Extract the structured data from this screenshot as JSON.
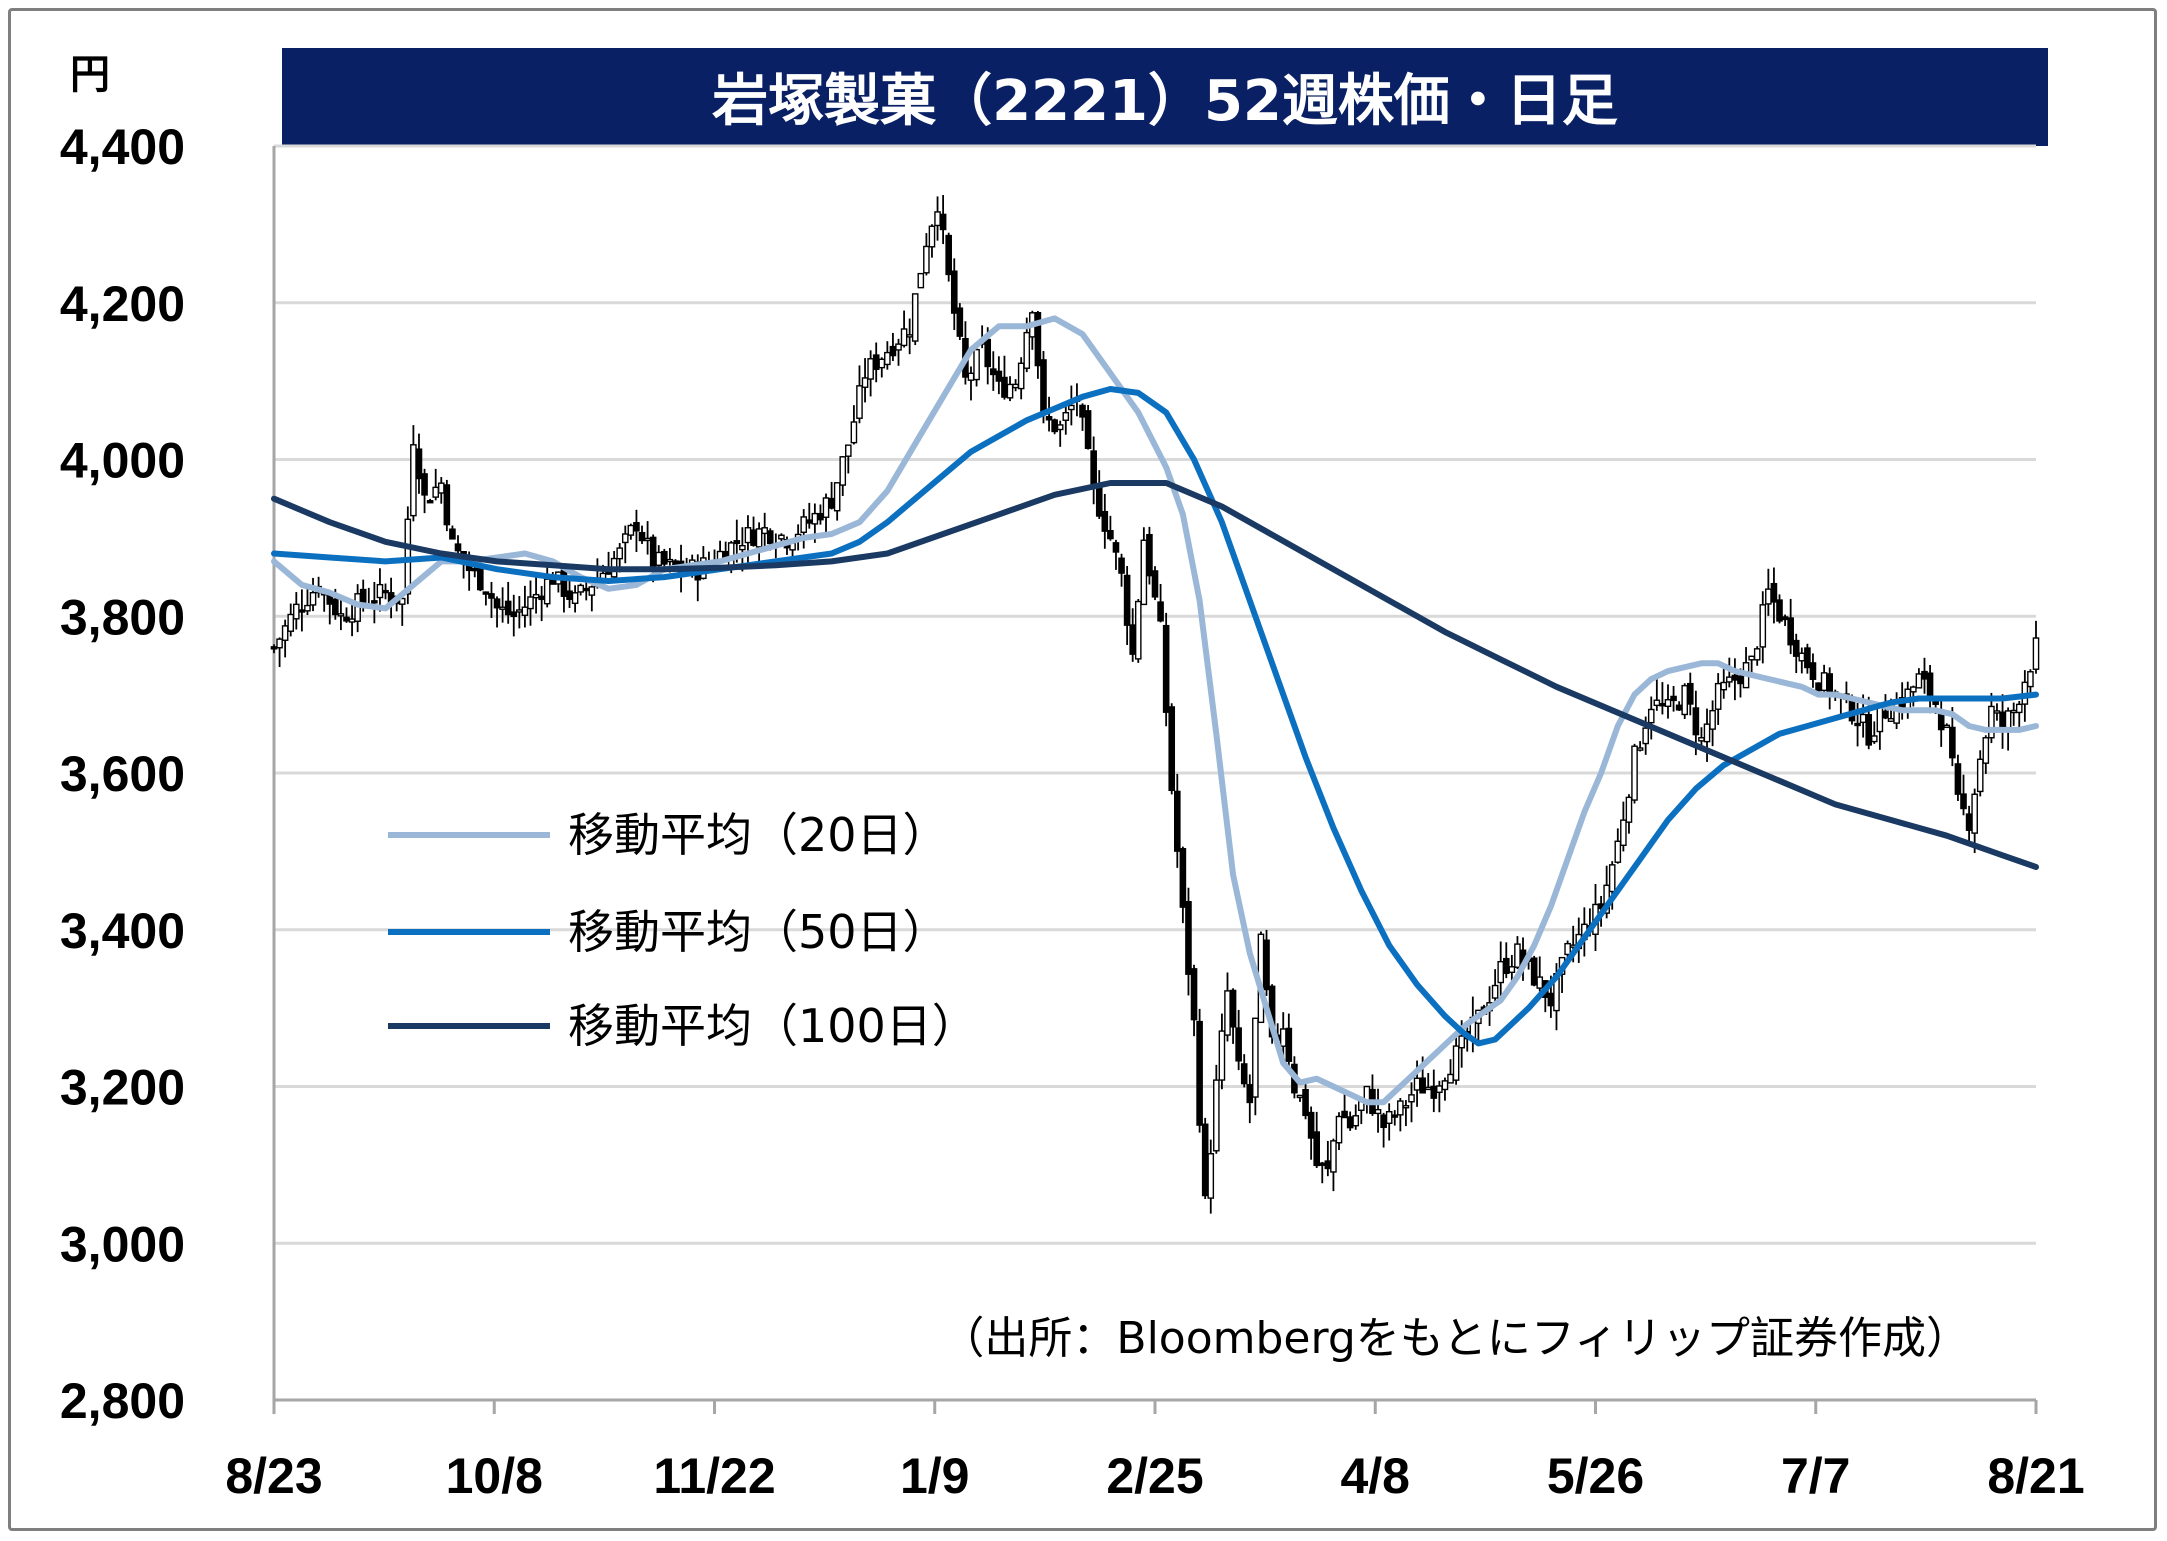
{
  "chart_data": {
    "type": "candlestick",
    "title": "岩塚製菓（2221）52週株価・日足",
    "yunit": "円",
    "ylim": [
      2800,
      4400
    ],
    "yticks": [
      2800,
      3000,
      3200,
      3400,
      3600,
      3800,
      4000,
      4200,
      4400
    ],
    "ytick_labels": [
      "2,800",
      "3,000",
      "3,200",
      "3,400",
      "3,600",
      "3,800",
      "4,000",
      "4,200",
      "4,400"
    ],
    "categories": [
      "8/23",
      "10/8",
      "11/22",
      "1/9",
      "2/25",
      "4/8",
      "5/26",
      "7/7",
      "8/21"
    ],
    "grid": true,
    "legend_position": "left-middle",
    "source": "（出所：Bloombergをもとにフィリップ証券作成）",
    "close_path": [
      [
        0,
        3760
      ],
      [
        4,
        3810
      ],
      [
        8,
        3840
      ],
      [
        12,
        3800
      ],
      [
        16,
        3820
      ],
      [
        20,
        3830
      ],
      [
        23,
        3820
      ],
      [
        25,
        4030
      ],
      [
        27,
        3950
      ],
      [
        30,
        3970
      ],
      [
        32,
        3890
      ],
      [
        35,
        3860
      ],
      [
        38,
        3840
      ],
      [
        40,
        3810
      ],
      [
        43,
        3800
      ],
      [
        46,
        3820
      ],
      [
        50,
        3850
      ],
      [
        54,
        3820
      ],
      [
        58,
        3850
      ],
      [
        62,
        3880
      ],
      [
        65,
        3920
      ],
      [
        68,
        3870
      ],
      [
        72,
        3860
      ],
      [
        76,
        3860
      ],
      [
        80,
        3880
      ],
      [
        84,
        3900
      ],
      [
        88,
        3910
      ],
      [
        92,
        3900
      ],
      [
        96,
        3920
      ],
      [
        100,
        3950
      ],
      [
        103,
        4020
      ],
      [
        106,
        4110
      ],
      [
        110,
        4140
      ],
      [
        114,
        4170
      ],
      [
        117,
        4280
      ],
      [
        119,
        4330
      ],
      [
        121,
        4230
      ],
      [
        124,
        4100
      ],
      [
        127,
        4140
      ],
      [
        130,
        4090
      ],
      [
        133,
        4100
      ],
      [
        136,
        4200
      ],
      [
        138,
        4050
      ],
      [
        141,
        4040
      ],
      [
        144,
        4080
      ],
      [
        147,
        3960
      ],
      [
        150,
        3900
      ],
      [
        152,
        3850
      ],
      [
        154,
        3750
      ],
      [
        156,
        3900
      ],
      [
        159,
        3780
      ],
      [
        161,
        3580
      ],
      [
        163,
        3420
      ],
      [
        165,
        3280
      ],
      [
        167,
        3050
      ],
      [
        169,
        3200
      ],
      [
        171,
        3320
      ],
      [
        173,
        3220
      ],
      [
        175,
        3180
      ],
      [
        177,
        3380
      ],
      [
        179,
        3250
      ],
      [
        181,
        3280
      ],
      [
        183,
        3200
      ],
      [
        185,
        3170
      ],
      [
        187,
        3100
      ],
      [
        189,
        3090
      ],
      [
        191,
        3170
      ],
      [
        193,
        3150
      ],
      [
        196,
        3190
      ],
      [
        199,
        3150
      ],
      [
        202,
        3170
      ],
      [
        205,
        3200
      ],
      [
        208,
        3200
      ],
      [
        211,
        3230
      ],
      [
        214,
        3260
      ],
      [
        217,
        3300
      ],
      [
        220,
        3350
      ],
      [
        223,
        3370
      ],
      [
        226,
        3340
      ],
      [
        229,
        3310
      ],
      [
        232,
        3370
      ],
      [
        235,
        3400
      ],
      [
        238,
        3430
      ],
      [
        241,
        3510
      ],
      [
        244,
        3620
      ],
      [
        247,
        3690
      ],
      [
        250,
        3680
      ],
      [
        253,
        3700
      ],
      [
        256,
        3640
      ],
      [
        259,
        3700
      ],
      [
        262,
        3720
      ],
      [
        265,
        3740
      ],
      [
        268,
        3830
      ],
      [
        271,
        3790
      ],
      [
        274,
        3750
      ],
      [
        277,
        3720
      ],
      [
        280,
        3700
      ],
      [
        283,
        3680
      ],
      [
        286,
        3650
      ],
      [
        289,
        3680
      ],
      [
        292,
        3690
      ],
      [
        295,
        3720
      ],
      [
        298,
        3690
      ],
      [
        300,
        3650
      ],
      [
        302,
        3560
      ],
      [
        304,
        3540
      ],
      [
        306,
        3620
      ],
      [
        308,
        3680
      ],
      [
        310,
        3660
      ],
      [
        312,
        3680
      ],
      [
        314,
        3720
      ],
      [
        316,
        3760
      ]
    ],
    "series": [
      {
        "name": "移動平均（20日）",
        "color": "#9ab7d8",
        "points": [
          [
            0,
            3870
          ],
          [
            5,
            3840
          ],
          [
            10,
            3830
          ],
          [
            15,
            3815
          ],
          [
            20,
            3810
          ],
          [
            25,
            3840
          ],
          [
            30,
            3870
          ],
          [
            35,
            3870
          ],
          [
            40,
            3875
          ],
          [
            45,
            3880
          ],
          [
            50,
            3870
          ],
          [
            55,
            3850
          ],
          [
            60,
            3835
          ],
          [
            65,
            3840
          ],
          [
            70,
            3860
          ],
          [
            75,
            3865
          ],
          [
            80,
            3870
          ],
          [
            85,
            3880
          ],
          [
            90,
            3890
          ],
          [
            95,
            3900
          ],
          [
            100,
            3905
          ],
          [
            105,
            3920
          ],
          [
            110,
            3960
          ],
          [
            115,
            4020
          ],
          [
            120,
            4080
          ],
          [
            125,
            4140
          ],
          [
            130,
            4170
          ],
          [
            135,
            4170
          ],
          [
            140,
            4180
          ],
          [
            145,
            4160
          ],
          [
            150,
            4110
          ],
          [
            155,
            4060
          ],
          [
            160,
            3990
          ],
          [
            163,
            3930
          ],
          [
            166,
            3820
          ],
          [
            169,
            3650
          ],
          [
            172,
            3470
          ],
          [
            175,
            3370
          ],
          [
            178,
            3300
          ],
          [
            181,
            3230
          ],
          [
            184,
            3205
          ],
          [
            187,
            3210
          ],
          [
            190,
            3200
          ],
          [
            193,
            3190
          ],
          [
            196,
            3180
          ],
          [
            199,
            3180
          ],
          [
            202,
            3200
          ],
          [
            205,
            3220
          ],
          [
            208,
            3240
          ],
          [
            211,
            3260
          ],
          [
            214,
            3280
          ],
          [
            217,
            3295
          ],
          [
            220,
            3310
          ],
          [
            223,
            3340
          ],
          [
            226,
            3380
          ],
          [
            229,
            3430
          ],
          [
            232,
            3490
          ],
          [
            235,
            3550
          ],
          [
            238,
            3600
          ],
          [
            241,
            3660
          ],
          [
            244,
            3700
          ],
          [
            247,
            3720
          ],
          [
            250,
            3730
          ],
          [
            253,
            3735
          ],
          [
            256,
            3740
          ],
          [
            259,
            3740
          ],
          [
            262,
            3730
          ],
          [
            265,
            3725
          ],
          [
            268,
            3720
          ],
          [
            271,
            3715
          ],
          [
            274,
            3710
          ],
          [
            277,
            3700
          ],
          [
            280,
            3700
          ],
          [
            283,
            3695
          ],
          [
            286,
            3690
          ],
          [
            289,
            3685
          ],
          [
            292,
            3680
          ],
          [
            295,
            3680
          ],
          [
            298,
            3680
          ],
          [
            301,
            3675
          ],
          [
            304,
            3660
          ],
          [
            307,
            3655
          ],
          [
            310,
            3655
          ],
          [
            313,
            3655
          ],
          [
            316,
            3660
          ]
        ]
      },
      {
        "name": "移動平均（50日）",
        "color": "#0c70c0",
        "points": [
          [
            0,
            3880
          ],
          [
            10,
            3875
          ],
          [
            20,
            3870
          ],
          [
            30,
            3875
          ],
          [
            40,
            3860
          ],
          [
            50,
            3850
          ],
          [
            60,
            3845
          ],
          [
            70,
            3850
          ],
          [
            80,
            3860
          ],
          [
            90,
            3870
          ],
          [
            100,
            3880
          ],
          [
            105,
            3895
          ],
          [
            110,
            3920
          ],
          [
            115,
            3950
          ],
          [
            120,
            3980
          ],
          [
            125,
            4010
          ],
          [
            130,
            4030
          ],
          [
            135,
            4050
          ],
          [
            140,
            4065
          ],
          [
            145,
            4080
          ],
          [
            150,
            4090
          ],
          [
            155,
            4085
          ],
          [
            160,
            4060
          ],
          [
            165,
            4000
          ],
          [
            170,
            3920
          ],
          [
            175,
            3820
          ],
          [
            180,
            3720
          ],
          [
            185,
            3620
          ],
          [
            190,
            3530
          ],
          [
            195,
            3450
          ],
          [
            200,
            3380
          ],
          [
            205,
            3330
          ],
          [
            210,
            3290
          ],
          [
            213,
            3270
          ],
          [
            216,
            3255
          ],
          [
            219,
            3260
          ],
          [
            222,
            3280
          ],
          [
            225,
            3300
          ],
          [
            230,
            3340
          ],
          [
            235,
            3390
          ],
          [
            240,
            3440
          ],
          [
            245,
            3490
          ],
          [
            250,
            3540
          ],
          [
            255,
            3580
          ],
          [
            260,
            3610
          ],
          [
            265,
            3630
          ],
          [
            270,
            3650
          ],
          [
            275,
            3660
          ],
          [
            280,
            3670
          ],
          [
            285,
            3680
          ],
          [
            290,
            3690
          ],
          [
            295,
            3695
          ],
          [
            300,
            3695
          ],
          [
            305,
            3695
          ],
          [
            310,
            3695
          ],
          [
            316,
            3700
          ]
        ]
      },
      {
        "name": "移動平均（100日）",
        "color": "#1a3a63",
        "points": [
          [
            0,
            3950
          ],
          [
            10,
            3920
          ],
          [
            20,
            3895
          ],
          [
            30,
            3880
          ],
          [
            40,
            3870
          ],
          [
            50,
            3865
          ],
          [
            60,
            3860
          ],
          [
            70,
            3860
          ],
          [
            80,
            3862
          ],
          [
            90,
            3865
          ],
          [
            100,
            3870
          ],
          [
            110,
            3880
          ],
          [
            120,
            3905
          ],
          [
            130,
            3930
          ],
          [
            140,
            3955
          ],
          [
            150,
            3970
          ],
          [
            160,
            3970
          ],
          [
            170,
            3940
          ],
          [
            180,
            3900
          ],
          [
            190,
            3860
          ],
          [
            200,
            3820
          ],
          [
            210,
            3780
          ],
          [
            220,
            3745
          ],
          [
            230,
            3710
          ],
          [
            240,
            3680
          ],
          [
            250,
            3650
          ],
          [
            260,
            3620
          ],
          [
            270,
            3590
          ],
          [
            280,
            3560
          ],
          [
            290,
            3540
          ],
          [
            300,
            3520
          ],
          [
            310,
            3495
          ],
          [
            316,
            3480
          ]
        ]
      }
    ]
  }
}
